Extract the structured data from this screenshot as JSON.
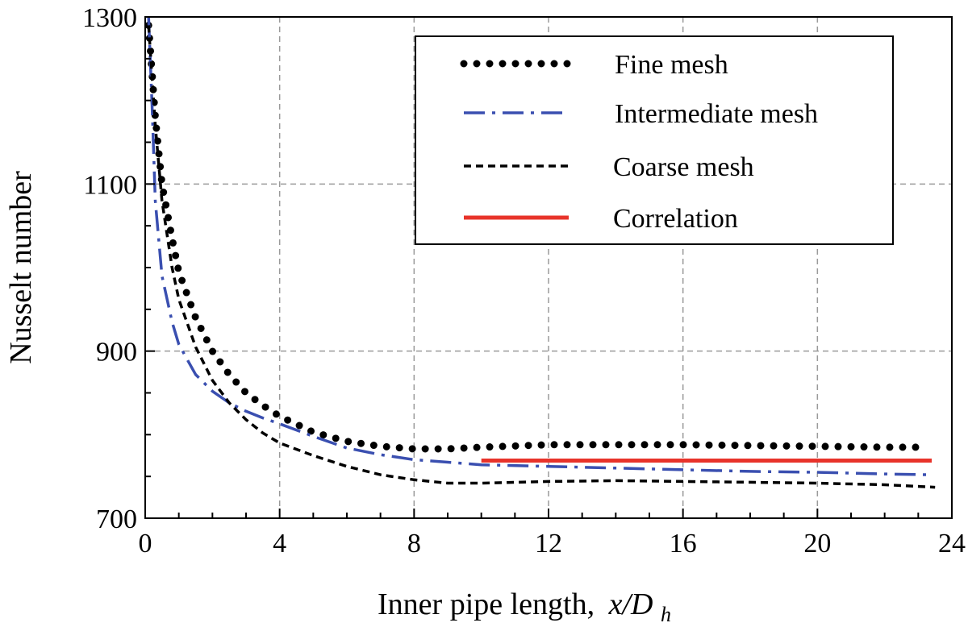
{
  "chart_data": {
    "type": "line",
    "title": "",
    "xlabel": "Inner pipe length,",
    "xlabel_var": "x/D",
    "xlabel_sub": "h",
    "ylabel": "Nusselt number",
    "xlim": [
      0,
      24
    ],
    "ylim": [
      700,
      1300
    ],
    "xticks": [
      0,
      4,
      8,
      12,
      16,
      20,
      24
    ],
    "yticks": [
      700,
      900,
      1100,
      1300
    ],
    "xtick_labels": [
      "0",
      "4",
      "8",
      "12",
      "16",
      "20",
      "24"
    ],
    "ytick_labels": [
      "700",
      "900",
      "1100",
      "1300"
    ],
    "grid": true,
    "legend_position": "top-right",
    "series": [
      {
        "name": "Fine mesh",
        "style": "dotted",
        "color": "#000000",
        "x": [
          0.1,
          0.3,
          0.5,
          0.8,
          1.0,
          1.5,
          2.0,
          2.5,
          3.0,
          3.5,
          4.0,
          5.0,
          6.0,
          7.0,
          8.0,
          9.0,
          10.0,
          12.0,
          14.0,
          16.0,
          18.0,
          20.0,
          22.0,
          23.0
        ],
        "y": [
          1290,
          1180,
          1100,
          1035,
          995,
          940,
          900,
          872,
          850,
          835,
          822,
          803,
          792,
          786,
          783,
          783,
          785,
          788,
          788,
          788,
          787,
          786,
          785,
          785
        ]
      },
      {
        "name": "Intermediate mesh",
        "style": "dashdot",
        "color": "#3a4fb0",
        "x": [
          0.1,
          0.2,
          0.3,
          0.5,
          0.8,
          1.0,
          1.5,
          2.0,
          2.5,
          3.0,
          3.5,
          4.0,
          5.0,
          6.0,
          7.0,
          8.0,
          9.0,
          10.0,
          12.0,
          14.0,
          16.0,
          18.0,
          20.0,
          22.0,
          23.3
        ],
        "y": [
          1300,
          1200,
          1080,
          990,
          935,
          908,
          872,
          852,
          838,
          828,
          820,
          813,
          798,
          784,
          776,
          770,
          767,
          764,
          762,
          760,
          758,
          756,
          755,
          753,
          752
        ]
      },
      {
        "name": "Coarse mesh",
        "style": "dashed",
        "color": "#000000",
        "x": [
          0.1,
          0.3,
          0.5,
          0.8,
          1.0,
          1.5,
          2.0,
          2.5,
          3.0,
          3.5,
          4.0,
          5.0,
          6.0,
          7.0,
          8.0,
          9.0,
          10.0,
          12.0,
          14.0,
          16.0,
          18.0,
          20.0,
          22.0,
          23.5
        ],
        "y": [
          1290,
          1170,
          1080,
          1000,
          962,
          905,
          865,
          838,
          818,
          802,
          790,
          775,
          762,
          752,
          746,
          742,
          742,
          744,
          745,
          744,
          743,
          742,
          740,
          737
        ]
      },
      {
        "name": "Correlation",
        "style": "solid",
        "color": "#e8332a",
        "x": [
          10.0,
          23.4
        ],
        "y": [
          769,
          769
        ]
      }
    ]
  }
}
